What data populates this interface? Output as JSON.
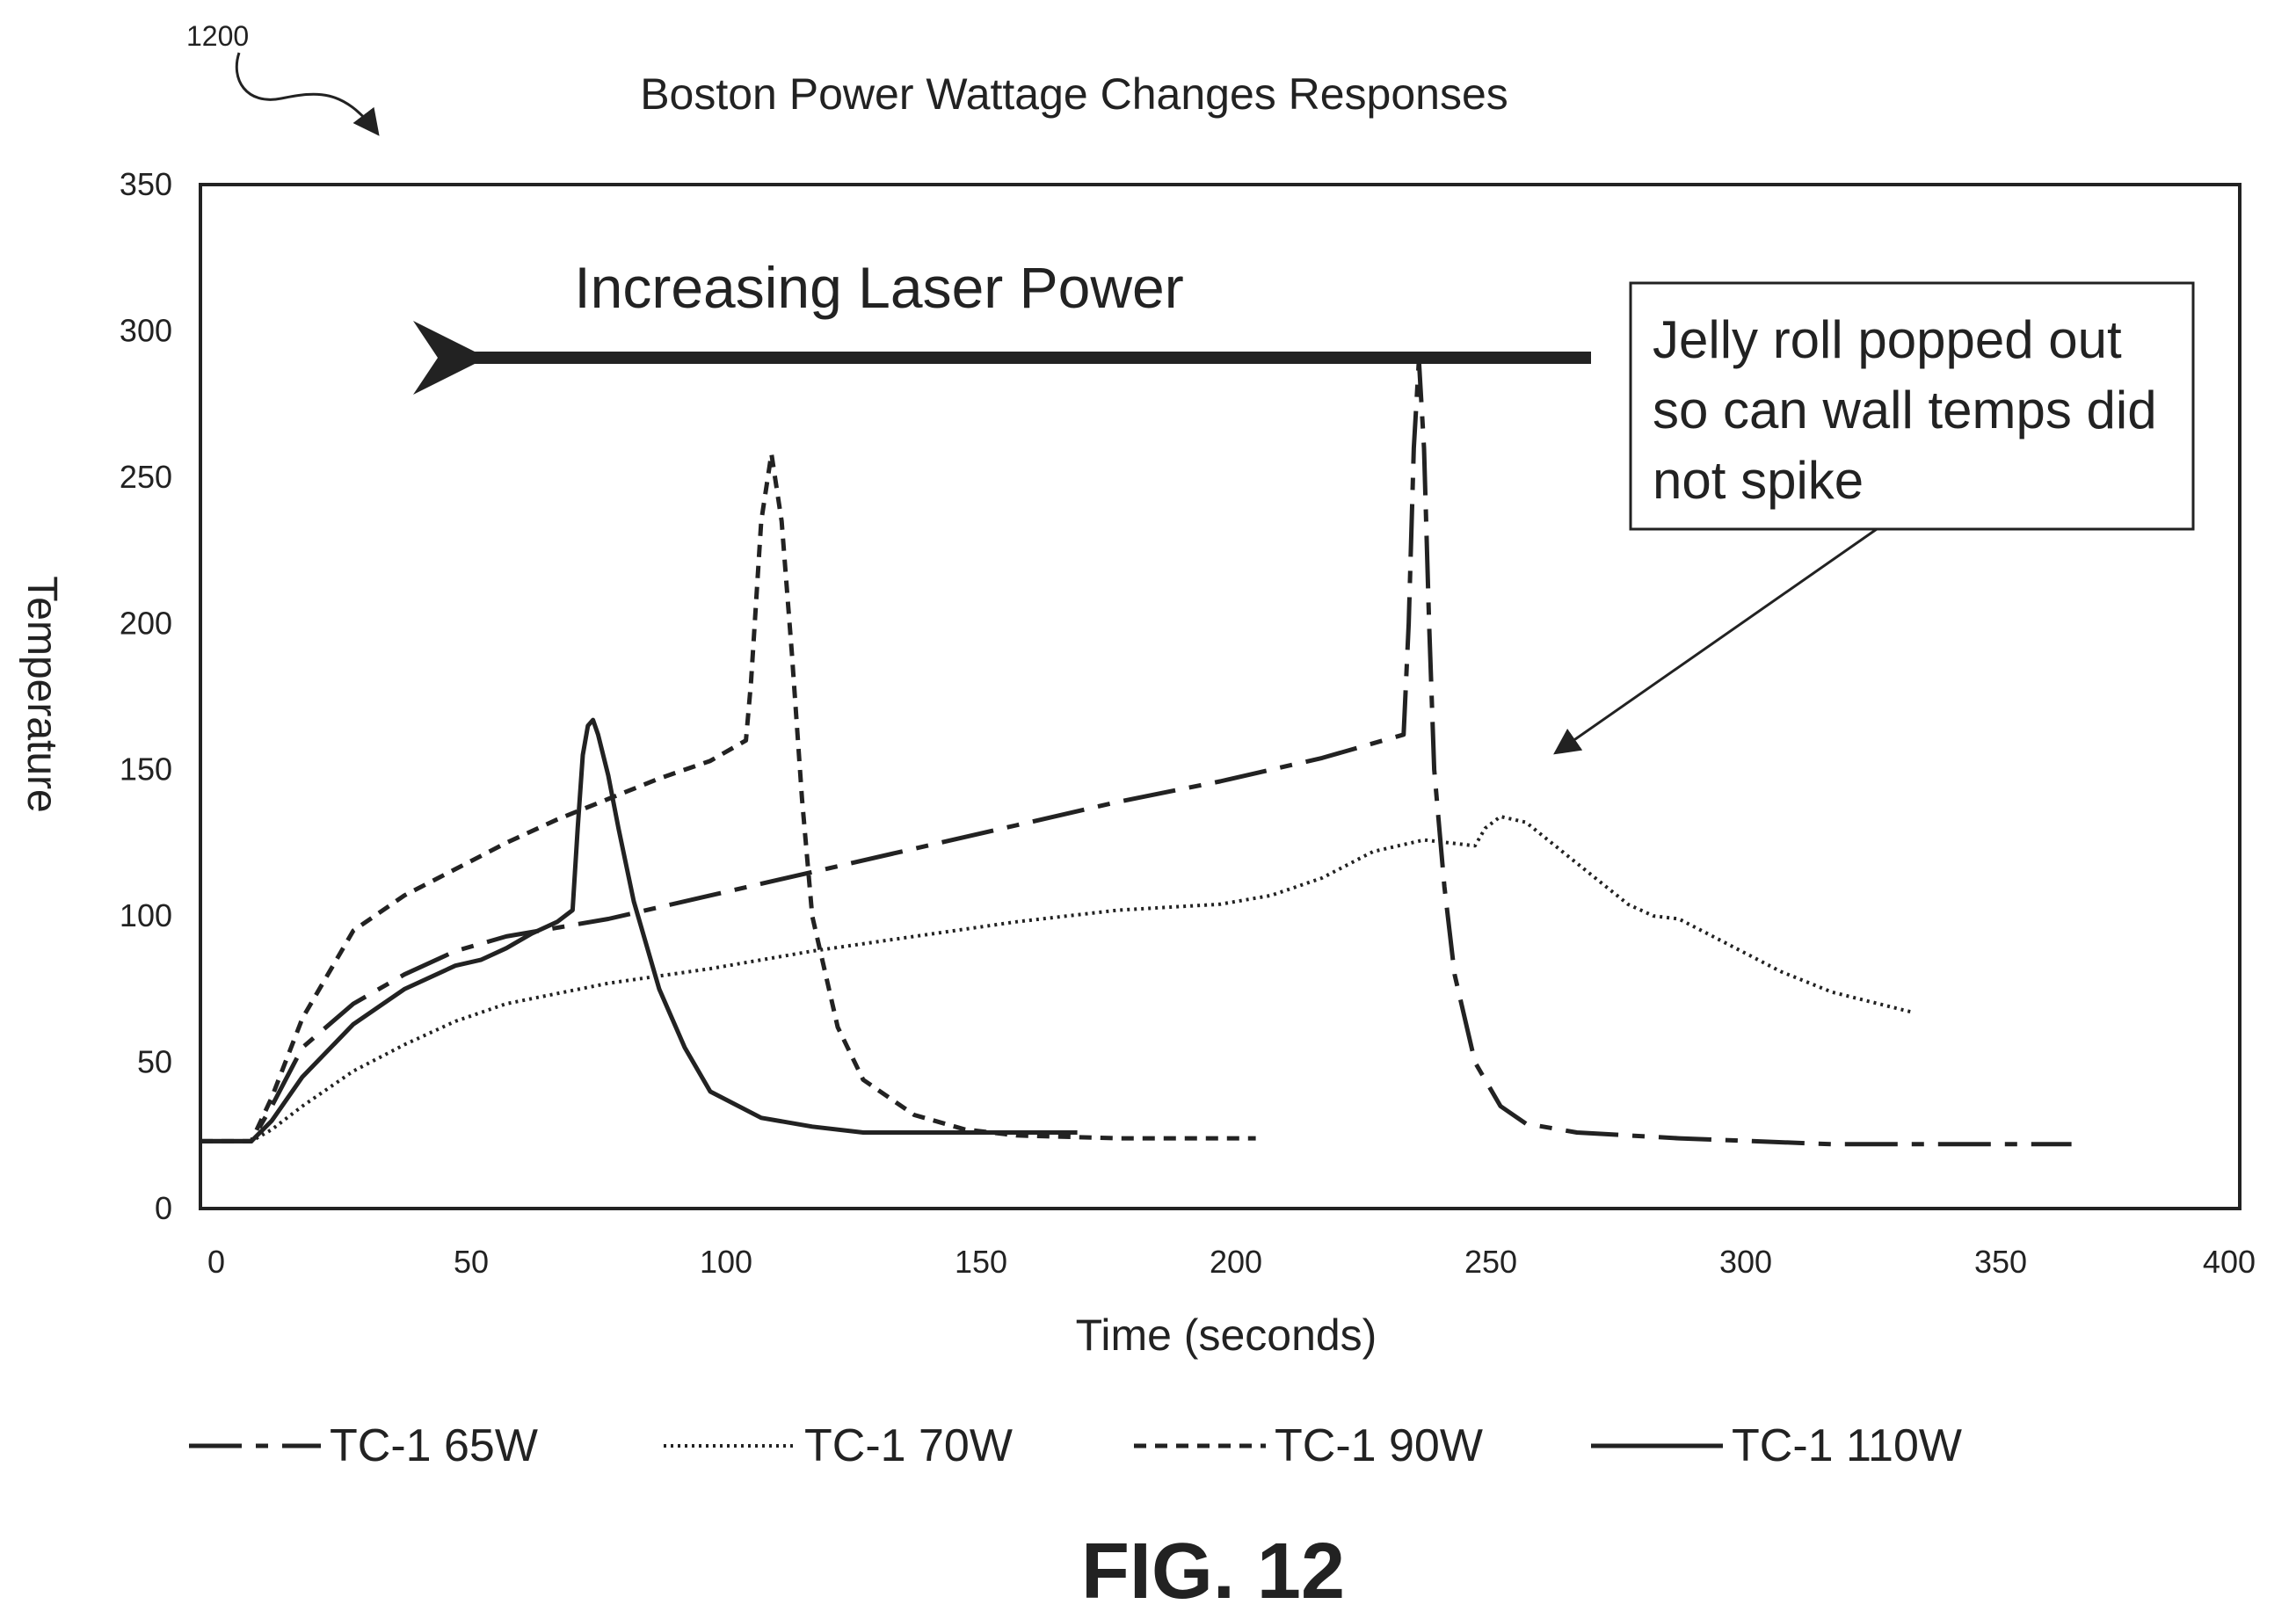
{
  "reference_numeral": "1200",
  "figure_label": "FIG. 12",
  "chart_data": {
    "type": "line",
    "title": "Boston Power Wattage Changes Responses",
    "xlabel": "Time (seconds)",
    "ylabel": "Temperature",
    "xlim": [
      0,
      400
    ],
    "ylim": [
      0,
      350
    ],
    "x_ticks": [
      0,
      50,
      100,
      150,
      200,
      250,
      300,
      350,
      400
    ],
    "y_ticks": [
      0,
      50,
      100,
      150,
      200,
      250,
      300,
      350
    ],
    "grid": false,
    "legend_position": "bottom",
    "annotations": {
      "arrow_label": "Increasing Laser Power",
      "note_lines": [
        "Jelly roll popped out",
        "so can wall temps did",
        "not spike"
      ]
    },
    "series": [
      {
        "name": "TC-1 65W",
        "dash": "60,16,14,16",
        "x": [
          0,
          10,
          14,
          20,
          30,
          40,
          50,
          60,
          80,
          100,
          120,
          140,
          160,
          180,
          200,
          220,
          236,
          237,
          238,
          239,
          240,
          241,
          242,
          244,
          246,
          250,
          255,
          260,
          270,
          290,
          320,
          350,
          367
        ],
        "y": [
          23,
          23,
          35,
          55,
          70,
          80,
          88,
          93,
          99,
          107,
          115,
          123,
          131,
          139,
          146,
          154,
          162,
          200,
          260,
          290,
          260,
          200,
          150,
          110,
          80,
          50,
          35,
          29,
          26,
          24,
          22,
          22,
          22
        ]
      },
      {
        "name": "TC-1 70W",
        "dash": "3,5",
        "x": [
          0,
          10,
          14,
          20,
          30,
          40,
          50,
          60,
          80,
          100,
          120,
          140,
          160,
          180,
          200,
          210,
          220,
          230,
          240,
          250,
          252,
          255,
          260,
          270,
          280,
          285,
          290,
          300,
          310,
          320,
          336
        ],
        "y": [
          23,
          23,
          27,
          35,
          47,
          56,
          64,
          70,
          77,
          82,
          88,
          93,
          98,
          102,
          104,
          107,
          113,
          122,
          126,
          124,
          130,
          134,
          132,
          118,
          104,
          100,
          99,
          90,
          81,
          74,
          67
        ]
      },
      {
        "name": "TC-1 90W",
        "dash": "14,10",
        "x": [
          0,
          10,
          14,
          20,
          30,
          40,
          50,
          60,
          70,
          80,
          90,
          100,
          107,
          108,
          110,
          112,
          114,
          116,
          118,
          120,
          125,
          130,
          140,
          150,
          160,
          180,
          207
        ],
        "y": [
          23,
          23,
          38,
          65,
          95,
          107,
          116,
          125,
          133,
          140,
          147,
          153,
          160,
          180,
          235,
          258,
          235,
          190,
          140,
          100,
          62,
          44,
          32,
          27,
          25,
          24,
          24
        ]
      },
      {
        "name": "TC-1 110W",
        "dash": "",
        "x": [
          0,
          10,
          14,
          20,
          30,
          40,
          50,
          55,
          60,
          65,
          70,
          73,
          74,
          75,
          76,
          77,
          78,
          80,
          82,
          85,
          90,
          95,
          100,
          110,
          120,
          130,
          150,
          172
        ],
        "y": [
          23,
          23,
          30,
          45,
          63,
          75,
          83,
          85,
          89,
          94,
          98,
          102,
          130,
          155,
          165,
          167,
          162,
          148,
          130,
          105,
          75,
          55,
          40,
          31,
          28,
          26,
          26,
          26
        ]
      }
    ]
  }
}
